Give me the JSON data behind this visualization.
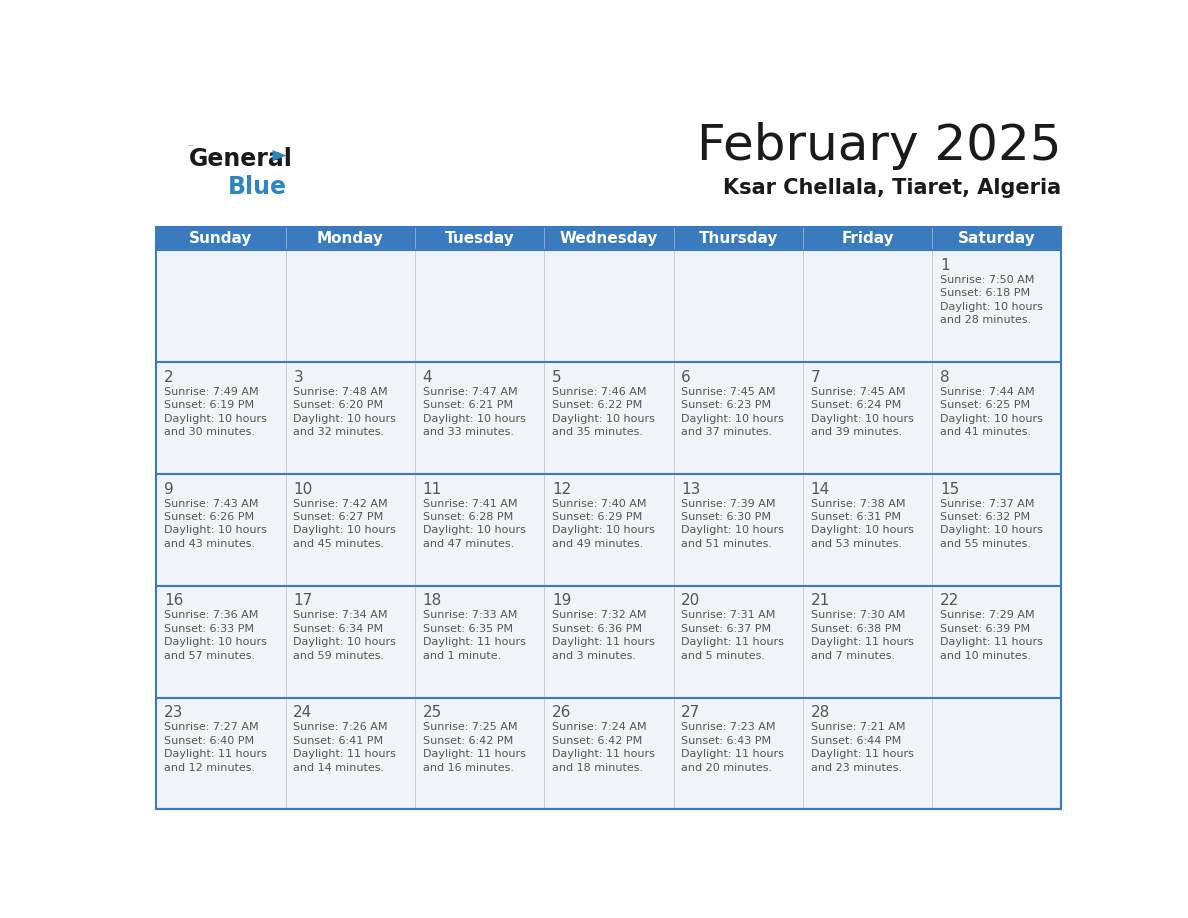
{
  "title": "February 2025",
  "subtitle": "Ksar Chellala, Tiaret, Algeria",
  "header_color": "#3a7bbf",
  "header_text_color": "#ffffff",
  "separator_color": "#3a7bbf",
  "cell_bg_color": "#f0f4f8",
  "text_color": "#555555",
  "days_of_week": [
    "Sunday",
    "Monday",
    "Tuesday",
    "Wednesday",
    "Thursday",
    "Friday",
    "Saturday"
  ],
  "weeks": [
    [
      {
        "day": "",
        "sunrise": "",
        "sunset": "",
        "daylight": ""
      },
      {
        "day": "",
        "sunrise": "",
        "sunset": "",
        "daylight": ""
      },
      {
        "day": "",
        "sunrise": "",
        "sunset": "",
        "daylight": ""
      },
      {
        "day": "",
        "sunrise": "",
        "sunset": "",
        "daylight": ""
      },
      {
        "day": "",
        "sunrise": "",
        "sunset": "",
        "daylight": ""
      },
      {
        "day": "",
        "sunrise": "",
        "sunset": "",
        "daylight": ""
      },
      {
        "day": "1",
        "sunrise": "7:50 AM",
        "sunset": "6:18 PM",
        "daylight": "10 hours and 28 minutes."
      }
    ],
    [
      {
        "day": "2",
        "sunrise": "7:49 AM",
        "sunset": "6:19 PM",
        "daylight": "10 hours and 30 minutes."
      },
      {
        "day": "3",
        "sunrise": "7:48 AM",
        "sunset": "6:20 PM",
        "daylight": "10 hours and 32 minutes."
      },
      {
        "day": "4",
        "sunrise": "7:47 AM",
        "sunset": "6:21 PM",
        "daylight": "10 hours and 33 minutes."
      },
      {
        "day": "5",
        "sunrise": "7:46 AM",
        "sunset": "6:22 PM",
        "daylight": "10 hours and 35 minutes."
      },
      {
        "day": "6",
        "sunrise": "7:45 AM",
        "sunset": "6:23 PM",
        "daylight": "10 hours and 37 minutes."
      },
      {
        "day": "7",
        "sunrise": "7:45 AM",
        "sunset": "6:24 PM",
        "daylight": "10 hours and 39 minutes."
      },
      {
        "day": "8",
        "sunrise": "7:44 AM",
        "sunset": "6:25 PM",
        "daylight": "10 hours and 41 minutes."
      }
    ],
    [
      {
        "day": "9",
        "sunrise": "7:43 AM",
        "sunset": "6:26 PM",
        "daylight": "10 hours and 43 minutes."
      },
      {
        "day": "10",
        "sunrise": "7:42 AM",
        "sunset": "6:27 PM",
        "daylight": "10 hours and 45 minutes."
      },
      {
        "day": "11",
        "sunrise": "7:41 AM",
        "sunset": "6:28 PM",
        "daylight": "10 hours and 47 minutes."
      },
      {
        "day": "12",
        "sunrise": "7:40 AM",
        "sunset": "6:29 PM",
        "daylight": "10 hours and 49 minutes."
      },
      {
        "day": "13",
        "sunrise": "7:39 AM",
        "sunset": "6:30 PM",
        "daylight": "10 hours and 51 minutes."
      },
      {
        "day": "14",
        "sunrise": "7:38 AM",
        "sunset": "6:31 PM",
        "daylight": "10 hours and 53 minutes."
      },
      {
        "day": "15",
        "sunrise": "7:37 AM",
        "sunset": "6:32 PM",
        "daylight": "10 hours and 55 minutes."
      }
    ],
    [
      {
        "day": "16",
        "sunrise": "7:36 AM",
        "sunset": "6:33 PM",
        "daylight": "10 hours and 57 minutes."
      },
      {
        "day": "17",
        "sunrise": "7:34 AM",
        "sunset": "6:34 PM",
        "daylight": "10 hours and 59 minutes."
      },
      {
        "day": "18",
        "sunrise": "7:33 AM",
        "sunset": "6:35 PM",
        "daylight": "11 hours and 1 minute."
      },
      {
        "day": "19",
        "sunrise": "7:32 AM",
        "sunset": "6:36 PM",
        "daylight": "11 hours and 3 minutes."
      },
      {
        "day": "20",
        "sunrise": "7:31 AM",
        "sunset": "6:37 PM",
        "daylight": "11 hours and 5 minutes."
      },
      {
        "day": "21",
        "sunrise": "7:30 AM",
        "sunset": "6:38 PM",
        "daylight": "11 hours and 7 minutes."
      },
      {
        "day": "22",
        "sunrise": "7:29 AM",
        "sunset": "6:39 PM",
        "daylight": "11 hours and 10 minutes."
      }
    ],
    [
      {
        "day": "23",
        "sunrise": "7:27 AM",
        "sunset": "6:40 PM",
        "daylight": "11 hours and 12 minutes."
      },
      {
        "day": "24",
        "sunrise": "7:26 AM",
        "sunset": "6:41 PM",
        "daylight": "11 hours and 14 minutes."
      },
      {
        "day": "25",
        "sunrise": "7:25 AM",
        "sunset": "6:42 PM",
        "daylight": "11 hours and 16 minutes."
      },
      {
        "day": "26",
        "sunrise": "7:24 AM",
        "sunset": "6:42 PM",
        "daylight": "11 hours and 18 minutes."
      },
      {
        "day": "27",
        "sunrise": "7:23 AM",
        "sunset": "6:43 PM",
        "daylight": "11 hours and 20 minutes."
      },
      {
        "day": "28",
        "sunrise": "7:21 AM",
        "sunset": "6:44 PM",
        "daylight": "11 hours and 23 minutes."
      },
      {
        "day": "",
        "sunrise": "",
        "sunset": "",
        "daylight": ""
      }
    ]
  ],
  "title_fontsize": 36,
  "subtitle_fontsize": 15,
  "header_fontsize": 11,
  "day_num_fontsize": 11,
  "cell_text_fontsize": 8,
  "fig_width": 11.88,
  "fig_height": 9.18,
  "logo_general_color": "#1a1a1a",
  "logo_blue_color": "#2e86c1",
  "logo_triangle_color": "#2e86c1"
}
